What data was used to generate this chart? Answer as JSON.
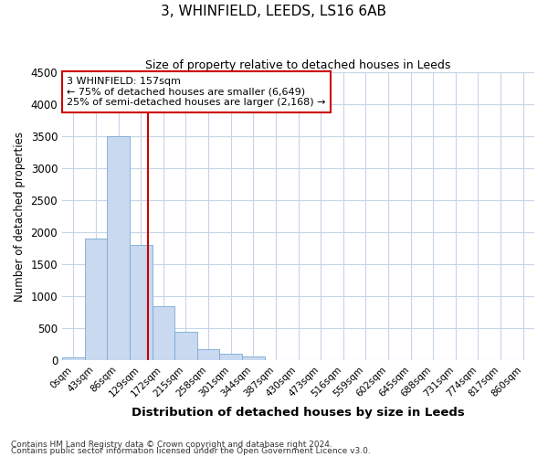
{
  "title": "3, WHINFIELD, LEEDS, LS16 6AB",
  "subtitle": "Size of property relative to detached houses in Leeds",
  "xlabel": "Distribution of detached houses by size in Leeds",
  "ylabel": "Number of detached properties",
  "bin_labels": [
    "0sqm",
    "43sqm",
    "86sqm",
    "129sqm",
    "172sqm",
    "215sqm",
    "258sqm",
    "301sqm",
    "344sqm",
    "387sqm",
    "430sqm",
    "473sqm",
    "516sqm",
    "559sqm",
    "602sqm",
    "645sqm",
    "688sqm",
    "731sqm",
    "774sqm",
    "817sqm",
    "860sqm"
  ],
  "bar_values": [
    50,
    1900,
    3500,
    1800,
    850,
    450,
    175,
    100,
    60,
    10,
    5,
    3,
    0,
    0,
    0,
    0,
    0,
    0,
    0,
    0,
    0
  ],
  "bar_color": "#c8d9f0",
  "bar_edgecolor": "#7aaad4",
  "vline_x": 3.33,
  "vline_color": "#cc0000",
  "annotation_text": "3 WHINFIELD: 157sqm\n← 75% of detached houses are smaller (6,649)\n25% of semi-detached houses are larger (2,168) →",
  "annotation_box_color": "#ffffff",
  "annotation_box_edgecolor": "#cc0000",
  "ylim": [
    0,
    4500
  ],
  "yticks": [
    0,
    500,
    1000,
    1500,
    2000,
    2500,
    3000,
    3500,
    4000,
    4500
  ],
  "background_color": "#ffffff",
  "grid_color": "#c8d4e8",
  "footnote1": "Contains HM Land Registry data © Crown copyright and database right 2024.",
  "footnote2": "Contains public sector information licensed under the Open Government Licence v3.0."
}
